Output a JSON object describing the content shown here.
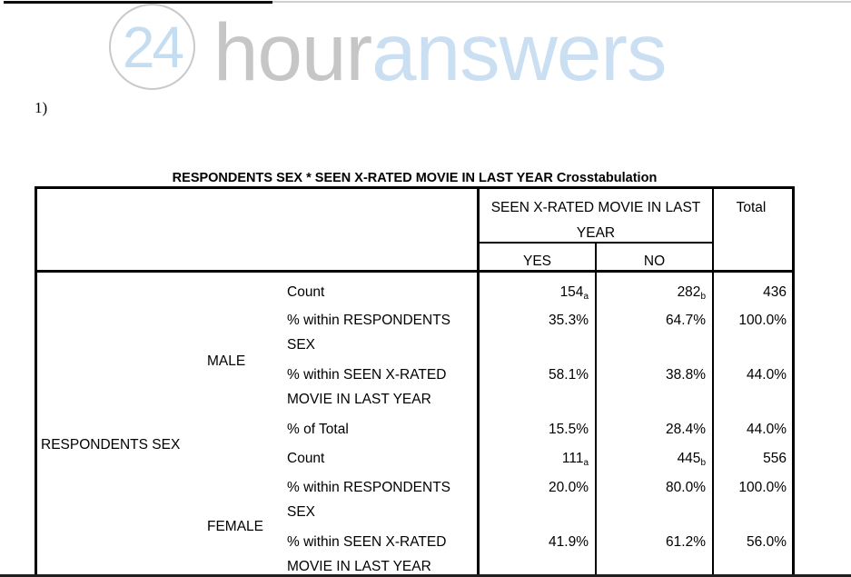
{
  "page": {
    "item_label": "1)"
  },
  "logo": {
    "circle_text": "24",
    "word_gray": "hour",
    "word_blue": "answers"
  },
  "table": {
    "title": "RESPONDENTS SEX * SEEN X-RATED MOVIE IN LAST YEAR Crosstabulation",
    "col_group_header": "SEEN X-RATED MOVIE IN LAST YEAR",
    "col_headers": [
      "YES",
      "NO"
    ],
    "total_header": "Total",
    "row_group_label": "RESPONDENTS SEX",
    "groups": [
      {
        "category": "MALE",
        "rows": [
          {
            "label": "Count",
            "yes": "154",
            "yes_sub": "a",
            "no": "282",
            "no_sub": "b",
            "total": "436"
          },
          {
            "label": "% within RESPONDENTS SEX",
            "yes": "35.3%",
            "no": "64.7%",
            "total": "100.0%"
          },
          {
            "label": "% within SEEN X-RATED MOVIE IN LAST YEAR",
            "yes": "58.1%",
            "no": "38.8%",
            "total": "44.0%"
          },
          {
            "label": "% of Total",
            "yes": "15.5%",
            "no": "28.4%",
            "total": "44.0%"
          }
        ]
      },
      {
        "category": "FEMALE",
        "rows": [
          {
            "label": "Count",
            "yes": "111",
            "yes_sub": "a",
            "no": "445",
            "no_sub": "b",
            "total": "556"
          },
          {
            "label": "% within RESPONDENTS SEX",
            "yes": "20.0%",
            "no": "80.0%",
            "total": "100.0%"
          },
          {
            "label": "% within SEEN X-RATED MOVIE IN LAST YEAR",
            "yes": "41.9%",
            "no": "61.2%",
            "total": "56.0%"
          }
        ]
      }
    ]
  }
}
